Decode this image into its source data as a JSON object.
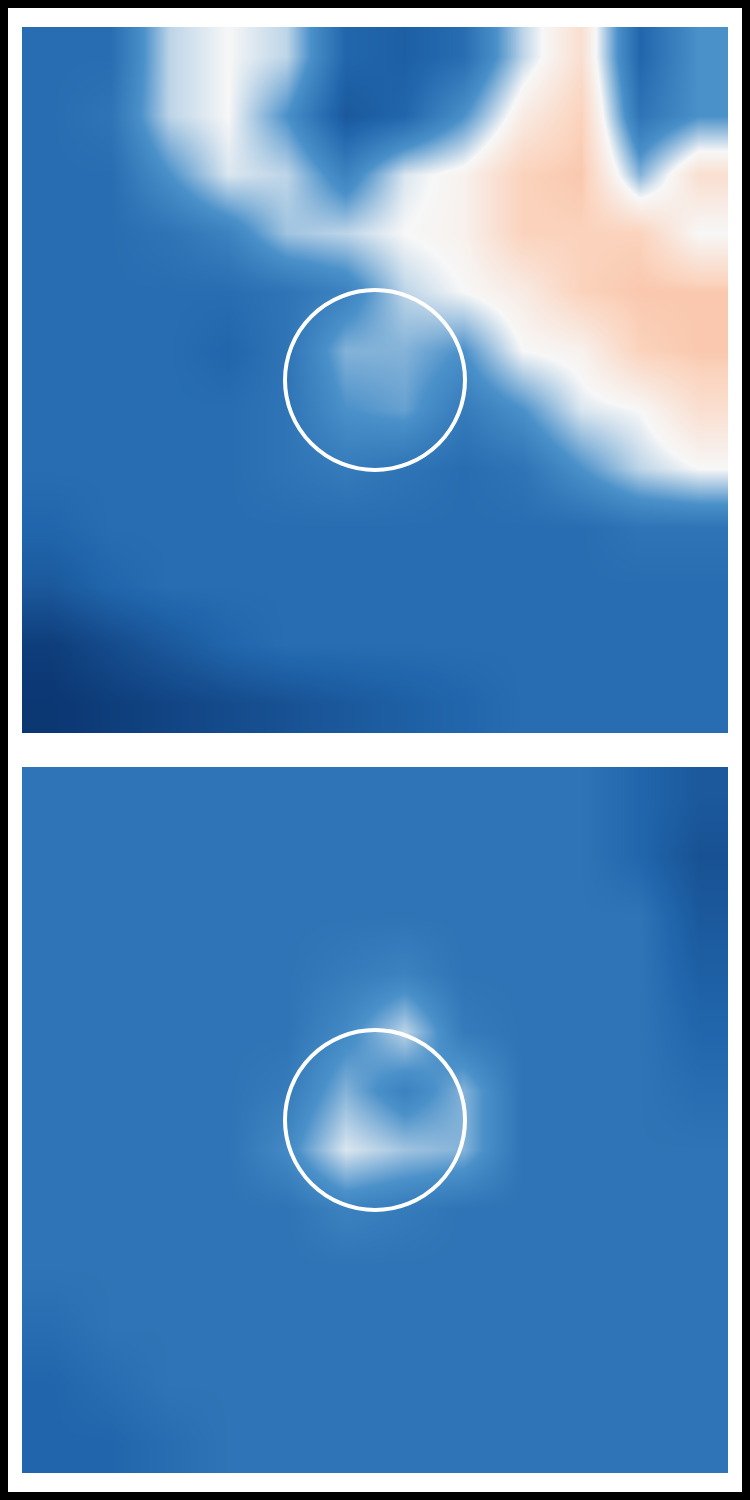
{
  "chart_data": [
    {
      "type": "heatmap",
      "tick_labels": false,
      "zlim": [
        -1,
        1
      ],
      "cells": [
        [
          -0.55,
          -0.55,
          -0.1,
          0,
          -0.1,
          -0.6,
          -0.65,
          -0.55,
          -0.1,
          0.2,
          -0.6,
          -0.3
        ],
        [
          -0.55,
          -0.5,
          -0.1,
          0,
          -0.3,
          -0.7,
          -0.6,
          -0.3,
          0.1,
          0.3,
          -0.5,
          -0.3
        ],
        [
          -0.55,
          -0.55,
          -0.3,
          -0.05,
          -0.1,
          -0.4,
          -0.05,
          0.05,
          0.3,
          0.35,
          -0.2,
          0.2
        ],
        [
          -0.55,
          -0.55,
          -0.5,
          -0.4,
          -0.15,
          -0.1,
          0,
          0.05,
          0.3,
          0.3,
          0.3,
          0
        ],
        [
          -0.55,
          -0.55,
          -0.55,
          -0.55,
          -0.5,
          -0.4,
          -0.1,
          0,
          0.1,
          0.3,
          0.35,
          0.35
        ],
        [
          -0.55,
          -0.55,
          -0.55,
          -0.6,
          -0.5,
          -0.2,
          -0.2,
          -0.3,
          0,
          0.05,
          0.3,
          0.35
        ],
        [
          -0.55,
          -0.55,
          -0.55,
          -0.55,
          -0.5,
          -0.3,
          -0.25,
          -0.45,
          -0.3,
          -0.05,
          0,
          0.2
        ],
        [
          -0.55,
          -0.55,
          -0.55,
          -0.55,
          -0.5,
          -0.45,
          -0.5,
          -0.55,
          -0.5,
          -0.3,
          -0.1,
          0
        ],
        [
          -0.6,
          -0.55,
          -0.55,
          -0.55,
          -0.55,
          -0.55,
          -0.55,
          -0.55,
          -0.55,
          -0.55,
          -0.5,
          -0.5
        ],
        [
          -0.7,
          -0.6,
          -0.55,
          -0.55,
          -0.55,
          -0.55,
          -0.55,
          -0.55,
          -0.55,
          -0.55,
          -0.55,
          -0.55
        ],
        [
          -0.9,
          -0.8,
          -0.7,
          -0.6,
          -0.55,
          -0.55,
          -0.55,
          -0.55,
          -0.55,
          -0.55,
          -0.55,
          -0.55
        ],
        [
          -0.95,
          -0.9,
          -0.85,
          -0.8,
          -0.75,
          -0.7,
          -0.65,
          -0.6,
          -0.55,
          -0.55,
          -0.55,
          -0.55
        ]
      ]
    },
    {
      "type": "heatmap",
      "tick_labels": false,
      "zlim": [
        -1,
        1
      ],
      "cells": [
        [
          -0.5,
          -0.5,
          -0.5,
          -0.5,
          -0.5,
          -0.5,
          -0.5,
          -0.5,
          -0.5,
          -0.5,
          -0.6,
          -0.7
        ],
        [
          -0.5,
          -0.5,
          -0.5,
          -0.5,
          -0.5,
          -0.5,
          -0.5,
          -0.5,
          -0.5,
          -0.5,
          -0.6,
          -0.75
        ],
        [
          -0.5,
          -0.5,
          -0.5,
          -0.5,
          -0.5,
          -0.5,
          -0.5,
          -0.5,
          -0.5,
          -0.5,
          -0.5,
          -0.7
        ],
        [
          -0.5,
          -0.5,
          -0.5,
          -0.5,
          -0.5,
          -0.45,
          -0.4,
          -0.5,
          -0.5,
          -0.5,
          -0.5,
          -0.65
        ],
        [
          -0.5,
          -0.5,
          -0.5,
          -0.5,
          -0.5,
          -0.35,
          -0.1,
          -0.45,
          -0.5,
          -0.5,
          -0.5,
          -0.6
        ],
        [
          -0.5,
          -0.5,
          -0.5,
          -0.5,
          -0.45,
          -0.2,
          -0.4,
          -0.2,
          -0.5,
          -0.5,
          -0.5,
          -0.55
        ],
        [
          -0.5,
          -0.5,
          -0.5,
          -0.5,
          -0.35,
          -0.05,
          -0.15,
          -0.2,
          -0.5,
          -0.5,
          -0.5,
          -0.5
        ],
        [
          -0.5,
          -0.5,
          -0.5,
          -0.5,
          -0.5,
          -0.4,
          -0.45,
          -0.5,
          -0.5,
          -0.5,
          -0.5,
          -0.5
        ],
        [
          -0.5,
          -0.5,
          -0.5,
          -0.5,
          -0.5,
          -0.5,
          -0.5,
          -0.5,
          -0.5,
          -0.5,
          -0.5,
          -0.5
        ],
        [
          -0.55,
          -0.5,
          -0.5,
          -0.5,
          -0.5,
          -0.5,
          -0.5,
          -0.5,
          -0.5,
          -0.5,
          -0.5,
          -0.5
        ],
        [
          -0.6,
          -0.55,
          -0.5,
          -0.5,
          -0.5,
          -0.5,
          -0.5,
          -0.5,
          -0.5,
          -0.5,
          -0.5,
          -0.5
        ],
        [
          -0.6,
          -0.6,
          -0.55,
          -0.5,
          -0.5,
          -0.5,
          -0.5,
          -0.5,
          -0.5,
          -0.5,
          -0.5,
          -0.5
        ]
      ]
    }
  ]
}
